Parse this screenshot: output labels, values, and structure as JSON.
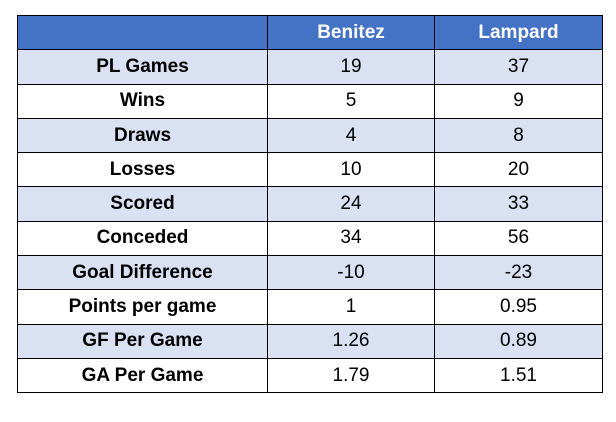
{
  "chart_data": {
    "type": "table",
    "columns": [
      "",
      "Benitez",
      "Lampard"
    ],
    "rows": [
      {
        "label": "PL Games",
        "values": [
          "19",
          "37"
        ]
      },
      {
        "label": "Wins",
        "values": [
          "5",
          "9"
        ]
      },
      {
        "label": "Draws",
        "values": [
          "4",
          "8"
        ]
      },
      {
        "label": "Losses",
        "values": [
          "10",
          "20"
        ]
      },
      {
        "label": "Scored",
        "values": [
          "24",
          "33"
        ]
      },
      {
        "label": "Conceded",
        "values": [
          "34",
          "56"
        ]
      },
      {
        "label": "Goal Difference",
        "values": [
          "-10",
          "-23"
        ]
      },
      {
        "label": "Points per game",
        "values": [
          "1",
          "0.95"
        ]
      },
      {
        "label": "GF Per Game",
        "values": [
          "1.26",
          "0.89"
        ]
      },
      {
        "label": "GA Per Game",
        "values": [
          "1.79",
          "1.51"
        ]
      }
    ],
    "colors": {
      "header_background": "#4472c4",
      "header_text": "#ffffff",
      "shaded_row": "#d9e1f2",
      "plain_row": "#ffffff",
      "border": "#000000"
    }
  }
}
